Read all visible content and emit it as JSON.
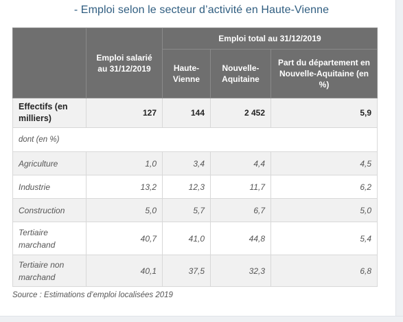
{
  "title": "- Emploi selon le secteur d’activité en Haute-Vienne",
  "header": {
    "group_label": "Emploi total au 31/12/2019",
    "col_salarie": "Emploi salarié au 31/12/2019",
    "col_hv": "Haute-Vienne",
    "col_na": "Nouvelle-Aquitaine",
    "col_part": "Part du département en Nouvelle-Aquitaine (en %)"
  },
  "effectifs": {
    "label": "Effectifs (en milliers)",
    "values": [
      "127",
      "144",
      "2 452",
      "5,9"
    ]
  },
  "dont_label": "dont (en %)",
  "rows": [
    {
      "label": "Agriculture",
      "values": [
        "1,0",
        "3,4",
        "4,4",
        "4,5"
      ]
    },
    {
      "label": "Industrie",
      "values": [
        "13,2",
        "12,3",
        "11,7",
        "6,2"
      ]
    },
    {
      "label": "Construction",
      "values": [
        "5,0",
        "5,7",
        "6,7",
        "5,0"
      ]
    },
    {
      "label": "Tertiaire marchand",
      "values": [
        "40,7",
        "41,0",
        "44,8",
        "5,4"
      ]
    },
    {
      "label": "Tertiaire non marchand",
      "values": [
        "40,1",
        "37,5",
        "32,3",
        "6,8"
      ]
    }
  ],
  "source": "Source : Estimations d’emploi localisées 2019",
  "colors": {
    "title": "#2f5d80",
    "header_bg": "#6f6f6f",
    "stripe": "#f1f1f1"
  }
}
